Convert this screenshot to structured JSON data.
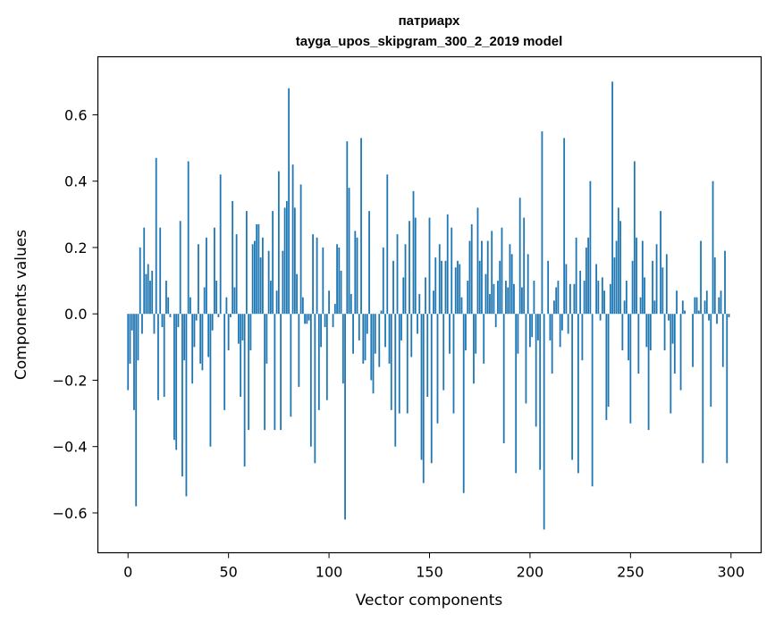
{
  "chart_data": {
    "type": "bar",
    "title": "патриарх",
    "subtitle": "tayga_upos_skipgram_300_2_2019 model",
    "xlabel": "Vector components",
    "ylabel": "Components values",
    "xlim": [
      -15,
      315
    ],
    "ylim": [
      -0.72,
      0.775
    ],
    "xticks": [
      0,
      50,
      100,
      150,
      200,
      250,
      300
    ],
    "yticks": [
      -0.6,
      -0.4,
      -0.2,
      0.0,
      0.2,
      0.4,
      0.6
    ],
    "ytick_labels": [
      "−0.6",
      "−0.4",
      "−0.2",
      "0.0",
      "0.2",
      "0.4",
      "0.6"
    ],
    "bar_color": "#1f77b4",
    "grid": false,
    "values": [
      -0.23,
      -0.15,
      -0.05,
      -0.29,
      -0.58,
      -0.14,
      0.2,
      -0.06,
      0.26,
      0.12,
      0.15,
      0.1,
      0.13,
      -0.06,
      0.47,
      -0.26,
      0.26,
      -0.04,
      -0.25,
      0.1,
      0.05,
      -0.01,
      0.0,
      -0.38,
      -0.41,
      -0.04,
      0.28,
      -0.49,
      -0.14,
      -0.55,
      0.46,
      0.05,
      -0.21,
      -0.1,
      -0.02,
      0.21,
      -0.15,
      -0.17,
      0.08,
      0.23,
      -0.13,
      -0.4,
      -0.05,
      0.26,
      0.1,
      -0.01,
      0.42,
      0.0,
      -0.29,
      0.05,
      -0.11,
      -0.01,
      0.34,
      0.08,
      0.24,
      -0.09,
      -0.25,
      -0.08,
      -0.46,
      0.31,
      -0.35,
      -0.11,
      0.21,
      0.22,
      0.27,
      0.27,
      0.17,
      0.23,
      -0.35,
      -0.15,
      0.19,
      0.1,
      0.31,
      -0.35,
      0.07,
      0.43,
      -0.35,
      0.19,
      0.32,
      0.34,
      0.68,
      -0.31,
      0.45,
      0.32,
      0.12,
      -0.22,
      0.39,
      0.05,
      -0.03,
      -0.03,
      -0.02,
      -0.4,
      0.24,
      -0.45,
      0.23,
      -0.29,
      -0.1,
      0.2,
      -0.04,
      -0.26,
      0.07,
      0.0,
      -0.04,
      0.03,
      0.21,
      0.2,
      0.13,
      -0.21,
      -0.62,
      0.52,
      0.38,
      0.06,
      -0.12,
      0.25,
      0.23,
      -0.08,
      0.53,
      -0.15,
      -0.14,
      -0.06,
      0.31,
      -0.2,
      -0.24,
      -0.12,
      0.0,
      -0.16,
      0.01,
      0.2,
      -0.1,
      0.42,
      -0.15,
      -0.29,
      0.16,
      -0.4,
      0.24,
      -0.3,
      -0.08,
      0.11,
      0.21,
      -0.3,
      0.28,
      -0.13,
      0.37,
      0.29,
      -0.06,
      0.06,
      -0.44,
      -0.51,
      0.11,
      -0.25,
      0.29,
      -0.45,
      0.07,
      0.17,
      -0.33,
      0.21,
      0.16,
      -0.23,
      0.16,
      0.3,
      -0.12,
      0.26,
      -0.3,
      0.14,
      0.16,
      0.15,
      0.05,
      -0.54,
      -0.11,
      0.1,
      0.22,
      0.27,
      -0.21,
      -0.12,
      0.32,
      0.16,
      0.22,
      -0.15,
      0.12,
      0.22,
      0.06,
      0.25,
      0.09,
      -0.04,
      0.1,
      0.16,
      0.26,
      -0.39,
      0.1,
      0.08,
      0.21,
      0.18,
      0.09,
      -0.48,
      -0.12,
      0.35,
      0.08,
      0.29,
      -0.27,
      0.18,
      -0.1,
      -0.07,
      0.1,
      -0.34,
      -0.08,
      -0.47,
      0.55,
      -0.65,
      0.0,
      0.16,
      -0.08,
      -0.18,
      0.04,
      0.08,
      0.1,
      -0.1,
      -0.05,
      0.53,
      0.15,
      -0.06,
      0.09,
      -0.44,
      0.09,
      0.23,
      -0.48,
      0.13,
      -0.14,
      0.1,
      0.2,
      0.23,
      0.4,
      -0.52,
      0.0,
      0.15,
      0.1,
      -0.02,
      0.11,
      0.07,
      -0.32,
      -0.28,
      0.09,
      0.7,
      0.17,
      0.22,
      0.32,
      0.28,
      -0.11,
      0.04,
      0.1,
      -0.14,
      -0.33,
      0.16,
      0.46,
      0.23,
      -0.18,
      0.05,
      0.22,
      0.11,
      -0.1,
      -0.35,
      -0.11,
      0.16,
      0.04,
      0.21,
      0.0,
      0.31,
      0.14,
      -0.11,
      0.18,
      -0.02,
      -0.3,
      -0.09,
      -0.18,
      0.07,
      0.0,
      -0.23,
      0.04,
      0.01,
      0.0,
      0.0,
      0.0,
      -0.16,
      0.05,
      0.05,
      0.01,
      0.22,
      -0.45,
      0.04,
      0.07,
      -0.02,
      -0.28,
      0.4,
      0.17,
      -0.03,
      0.05,
      0.07,
      -0.16,
      0.19,
      -0.45,
      -0.01
    ]
  }
}
